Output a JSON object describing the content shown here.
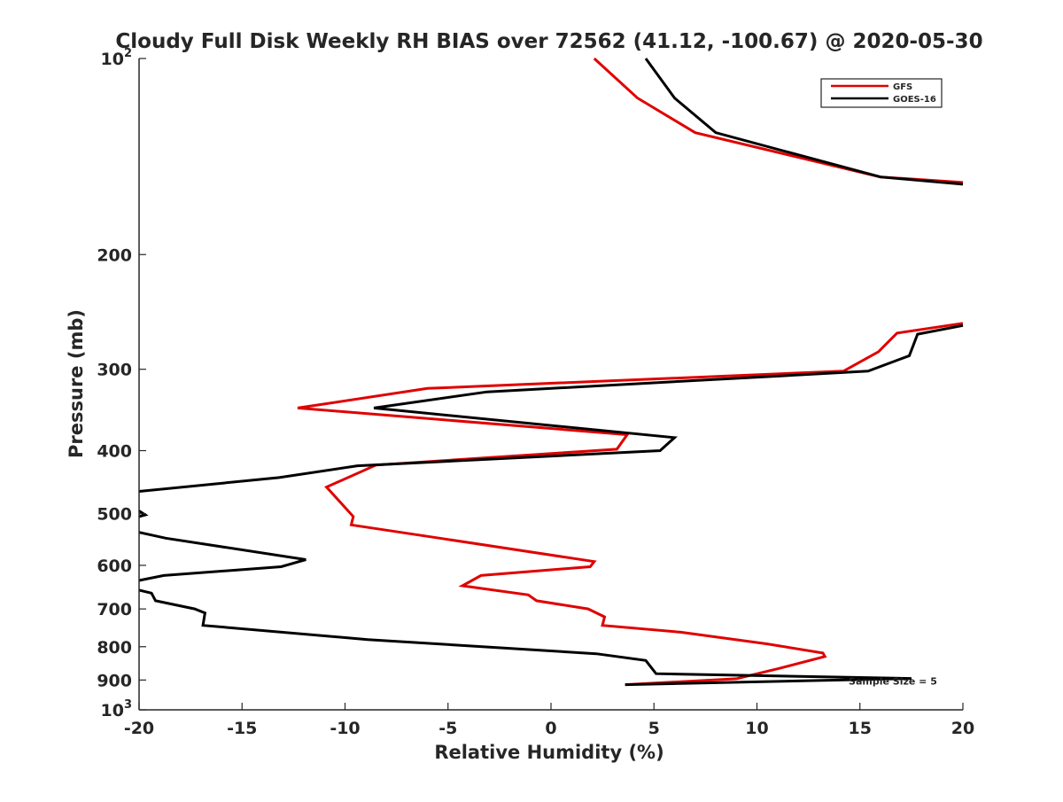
{
  "chart_data": {
    "type": "line",
    "title": "Cloudy Full Disk Weekly RH BIAS over 72562 (41.12, -100.67) @ 2020-05-30",
    "xlabel": "Relative Humidity (%)",
    "ylabel": "Pressure (mb)",
    "xlim": [
      -20,
      20
    ],
    "ylim": [
      100,
      1000
    ],
    "yscale": "log",
    "y_inverted": true,
    "grid": false,
    "legend_position": "top-right",
    "x_ticks": [
      "-20",
      "-15",
      "-10",
      "-5",
      "0",
      "5",
      "10",
      "15",
      "20"
    ],
    "y_ticks": [
      {
        "value": 100,
        "base": "10",
        "exp": "2"
      },
      {
        "value": 200,
        "label": "200"
      },
      {
        "value": 300,
        "label": "300"
      },
      {
        "value": 400,
        "label": "400"
      },
      {
        "value": 500,
        "label": "500"
      },
      {
        "value": 600,
        "label": "600"
      },
      {
        "value": 700,
        "label": "700"
      },
      {
        "value": 800,
        "label": "800"
      },
      {
        "value": 900,
        "label": "900"
      },
      {
        "value": 1000,
        "base": "10",
        "exp": "3"
      }
    ],
    "series": [
      {
        "name": "GFS",
        "color": "#e00000",
        "segments": [
          [
            [
              2.1,
              100
            ],
            [
              4.2,
              115
            ],
            [
              7.0,
              130
            ],
            [
              16,
              152
            ],
            [
              20,
              155
            ]
          ],
          [
            [
              20,
              255
            ],
            [
              16.8,
              264
            ],
            [
              15.9,
              282
            ],
            [
              14.2,
              302
            ],
            [
              -6.0,
              321
            ],
            [
              -12.3,
              344
            ],
            [
              3.7,
              378
            ],
            [
              3.2,
              398
            ],
            [
              -8.5,
              421
            ],
            [
              -10.9,
              455
            ],
            [
              -9.6,
              505
            ],
            [
              -9.7,
              520
            ],
            [
              -5.4,
              545
            ],
            [
              2.1,
              592
            ],
            [
              1.9,
              603
            ],
            [
              -3.4,
              622
            ],
            [
              -4.3,
              645
            ],
            [
              -1.1,
              666
            ],
            [
              -0.7,
              680
            ],
            [
              1.8,
              700
            ],
            [
              2.6,
              720
            ],
            [
              2.5,
              742
            ],
            [
              6.3,
              760
            ],
            [
              10.5,
              792
            ],
            [
              13.2,
              818
            ],
            [
              13.3,
              828
            ],
            [
              11.0,
              865
            ],
            [
              9.0,
              896
            ],
            [
              3.6,
              915
            ]
          ]
        ]
      },
      {
        "name": "GOES-16",
        "color": "#000000",
        "segments": [
          [
            [
              4.6,
              100
            ],
            [
              6.0,
              115
            ],
            [
              8.0,
              130
            ],
            [
              16,
              152
            ],
            [
              20,
              156
            ]
          ],
          [
            [
              20,
              257
            ],
            [
              17.8,
              265
            ],
            [
              17.4,
              286
            ],
            [
              15.4,
              302
            ],
            [
              -3.1,
              325
            ],
            [
              -8.6,
              344
            ],
            [
              6.0,
              382
            ],
            [
              5.3,
              400
            ],
            [
              -9.4,
              422
            ],
            [
              -13.2,
              440
            ],
            [
              -20,
              462
            ]
          ],
          [
            [
              -20,
              495
            ],
            [
              -19.7,
              502
            ],
            [
              -20,
              505
            ]
          ],
          [
            [
              -20,
              534
            ],
            [
              -18.7,
              545
            ],
            [
              -11.9,
              588
            ],
            [
              -13.1,
              603
            ],
            [
              -18.8,
              622
            ],
            [
              -20,
              633
            ]
          ],
          [
            [
              -20,
              655
            ],
            [
              -19.4,
              662
            ],
            [
              -19.2,
              680
            ],
            [
              -17.3,
              700
            ],
            [
              -16.8,
              710
            ],
            [
              -16.9,
              742
            ],
            [
              -8.9,
              780
            ],
            [
              2.2,
              820
            ],
            [
              4.6,
              840
            ],
            [
              5.1,
              880
            ],
            [
              17.5,
              895
            ],
            [
              3.6,
              915
            ]
          ]
        ]
      }
    ],
    "annotations": [
      {
        "text": "Sample Size = 5",
        "x": 16.6,
        "y": 900
      }
    ]
  }
}
